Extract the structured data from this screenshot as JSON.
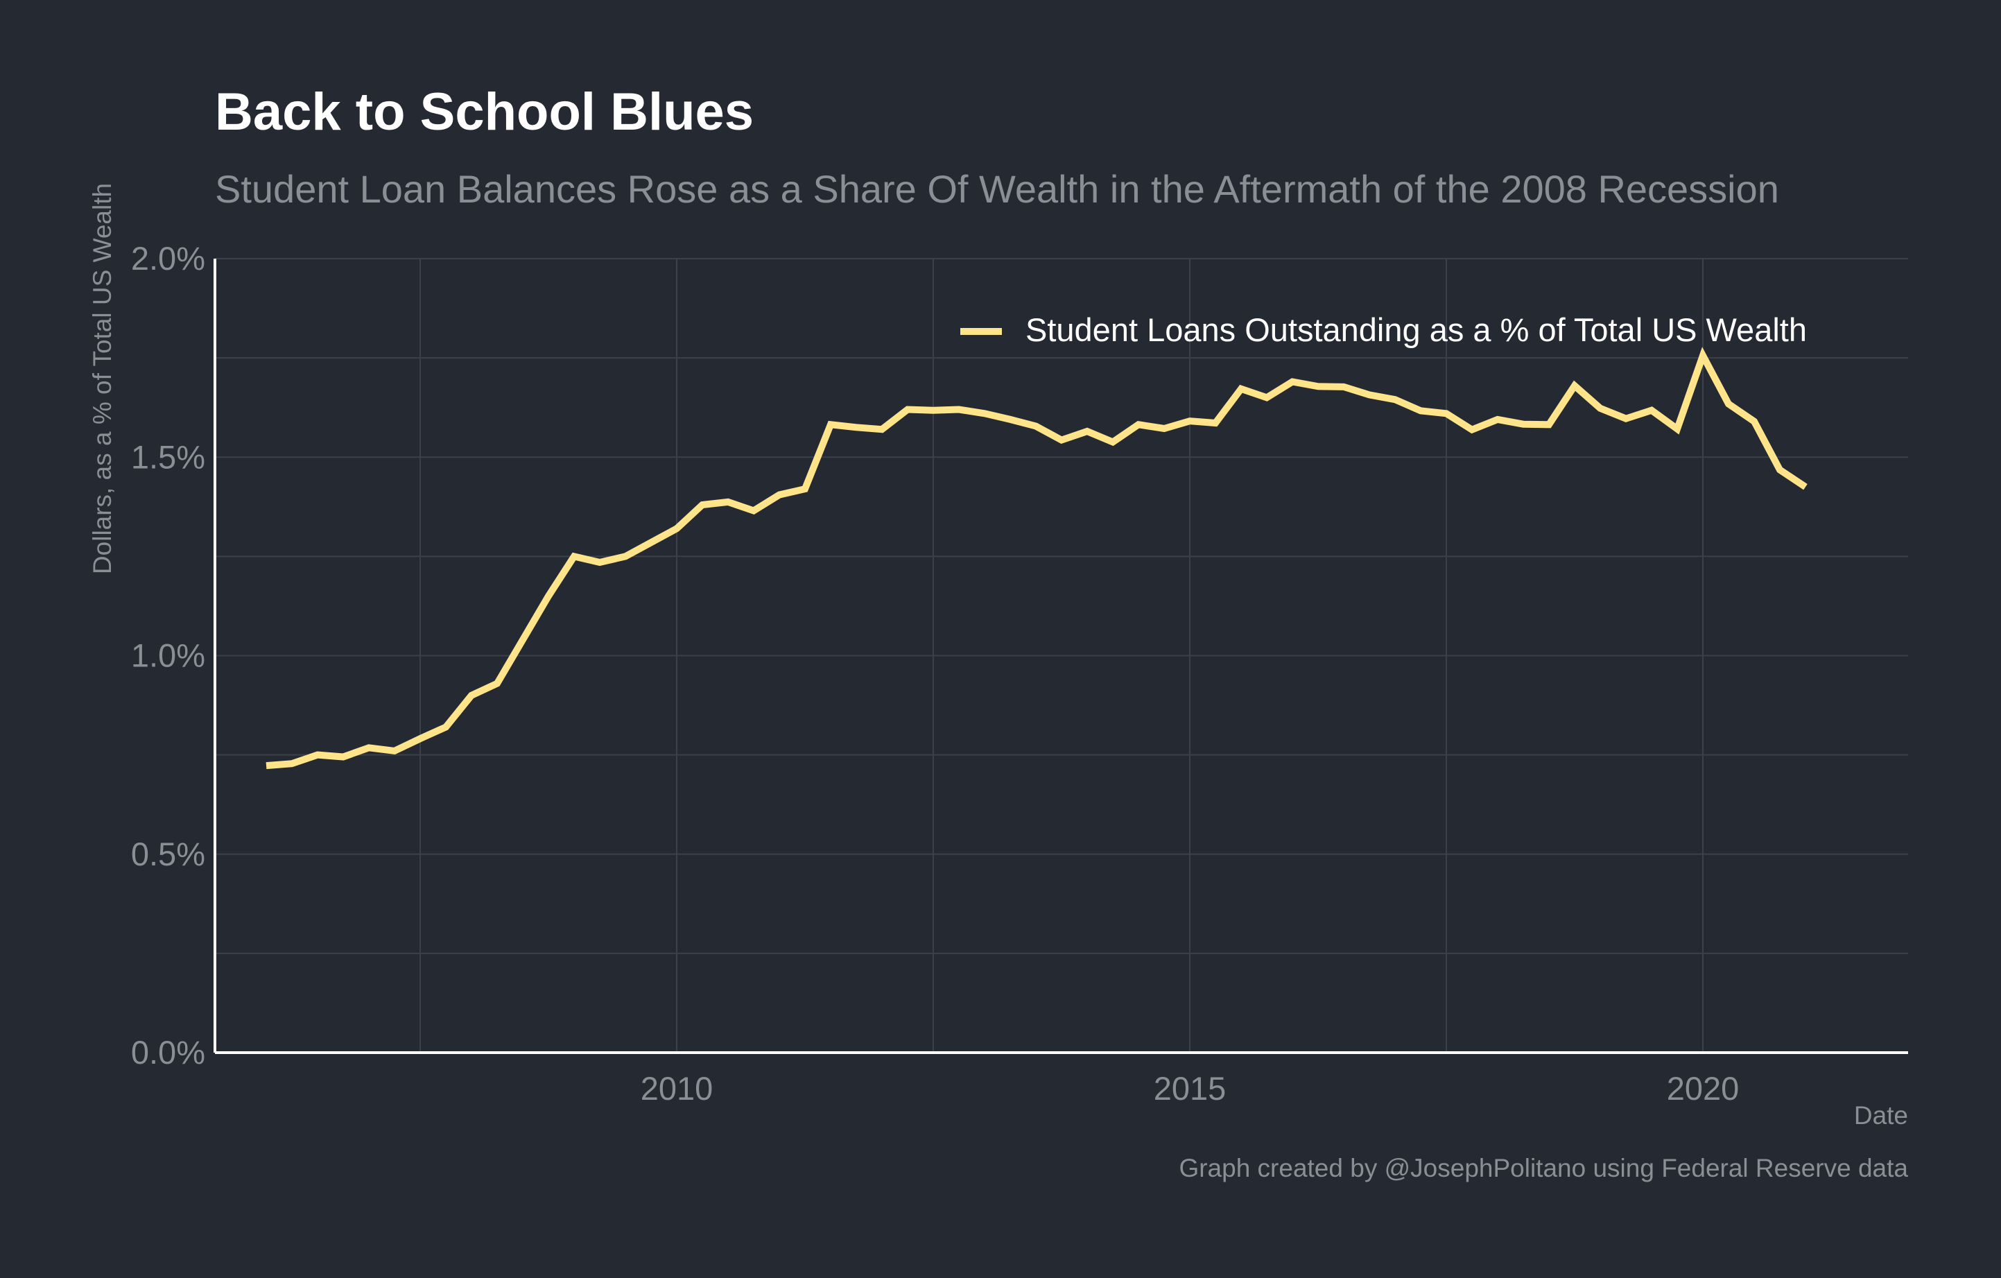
{
  "chart_data": {
    "type": "line",
    "title": "Back to School Blues",
    "subtitle": "Student Loan Balances Rose as a Share Of Wealth in the Aftermath of the 2008 Recession",
    "xlabel": "Date",
    "ylabel": "Dollars, as a % of Total US Wealth",
    "caption": "Graph created by @JosephPolitano using Federal Reserve data",
    "xlim": [
      2005.5,
      2022.0
    ],
    "ylim": [
      0.0,
      2.0
    ],
    "x_ticks": [
      2010,
      2015,
      2020
    ],
    "x_tick_labels": [
      "2010",
      "2015",
      "2020"
    ],
    "y_ticks": [
      0.0,
      0.5,
      1.0,
      1.5,
      2.0
    ],
    "y_tick_labels": [
      "0.0%",
      "0.5%",
      "1.0%",
      "1.5%",
      "2.0%"
    ],
    "grid": true,
    "legend_position": "top-right",
    "colors": {
      "background": "#252932",
      "grid": "#3c4049",
      "axis": "#ffffff",
      "text_muted": "#8b8e94",
      "series": "#ffe48a"
    },
    "series": [
      {
        "name": "Student Loans Outstanding as a % of Total US Wealth",
        "x": [
          2006.0,
          2006.25,
          2006.5,
          2006.75,
          2007.0,
          2007.25,
          2007.5,
          2007.75,
          2008.0,
          2008.25,
          2008.5,
          2008.75,
          2009.0,
          2009.25,
          2009.5,
          2009.75,
          2010.0,
          2010.25,
          2010.5,
          2010.75,
          2011.0,
          2011.25,
          2011.5,
          2011.75,
          2012.0,
          2012.25,
          2012.5,
          2012.75,
          2013.0,
          2013.25,
          2013.5,
          2013.75,
          2014.0,
          2014.25,
          2014.5,
          2014.75,
          2015.0,
          2015.25,
          2015.5,
          2015.75,
          2016.0,
          2016.25,
          2016.5,
          2016.75,
          2017.0,
          2017.25,
          2017.5,
          2017.75,
          2018.0,
          2018.25,
          2018.5,
          2018.75,
          2019.0,
          2019.25,
          2019.5,
          2019.75,
          2020.0,
          2020.25,
          2020.5,
          2020.75,
          2021.0
        ],
        "values": [
          0.723,
          0.728,
          0.75,
          0.745,
          0.768,
          0.76,
          0.791,
          0.82,
          0.9,
          0.93,
          1.04,
          1.15,
          1.25,
          1.235,
          1.25,
          1.285,
          1.32,
          1.38,
          1.387,
          1.365,
          1.405,
          1.42,
          1.582,
          1.575,
          1.57,
          1.62,
          1.618,
          1.62,
          1.61,
          1.595,
          1.578,
          1.543,
          1.565,
          1.538,
          1.582,
          1.572,
          1.591,
          1.586,
          1.672,
          1.65,
          1.69,
          1.678,
          1.677,
          1.657,
          1.645,
          1.617,
          1.61,
          1.569,
          1.595,
          1.583,
          1.582,
          1.68,
          1.623,
          1.597,
          1.618,
          1.571,
          1.756,
          1.634,
          1.59,
          1.468,
          1.425
        ]
      }
    ]
  }
}
